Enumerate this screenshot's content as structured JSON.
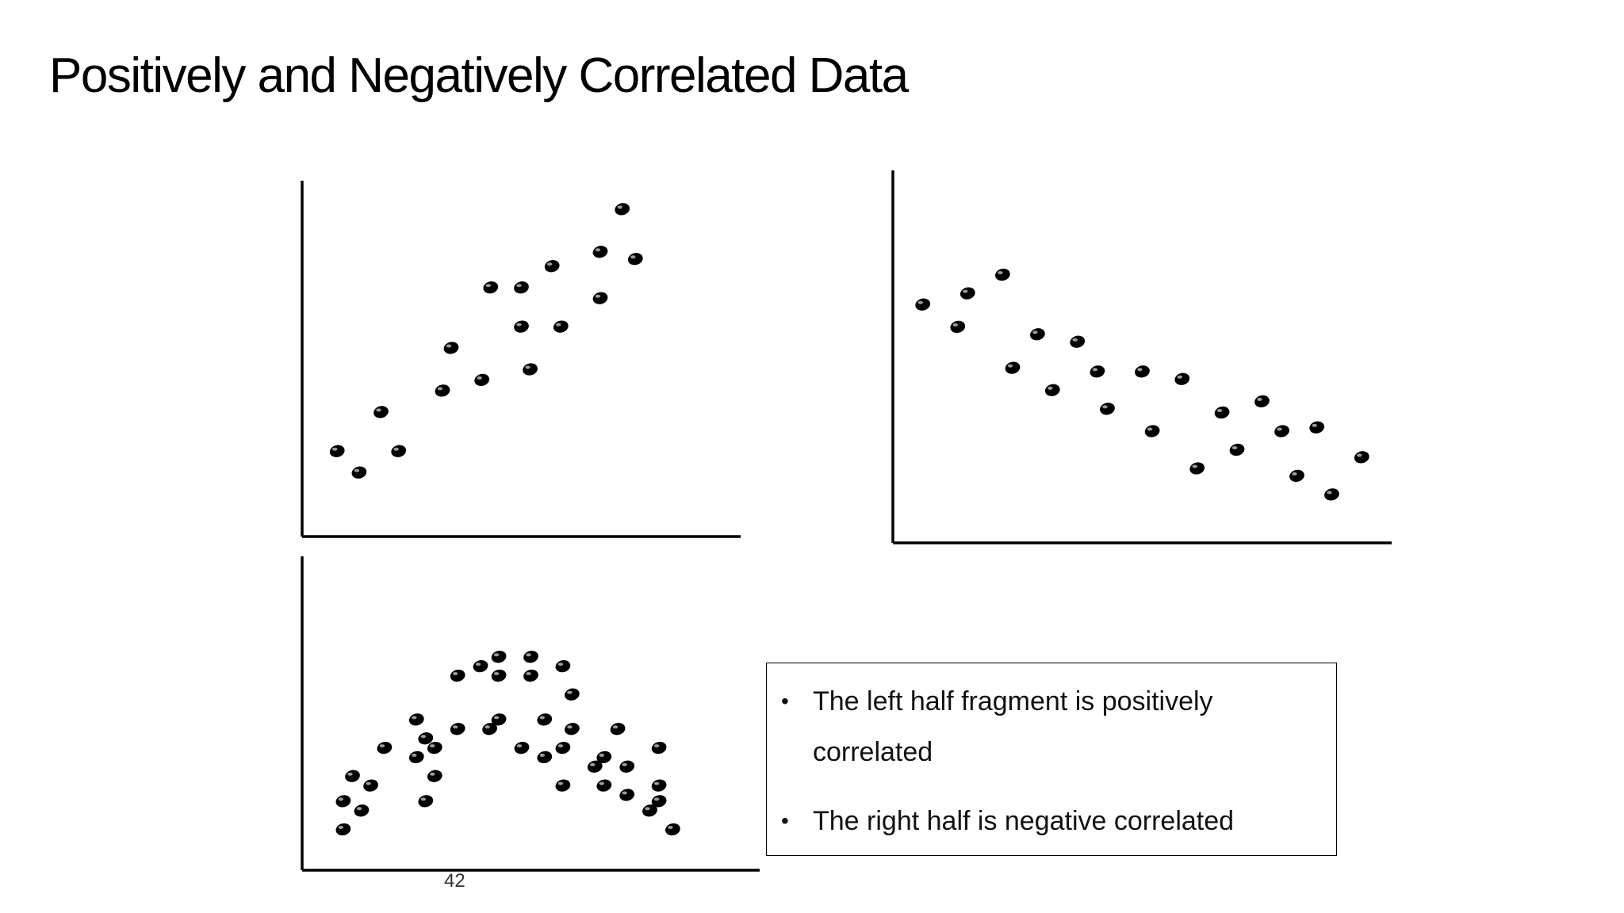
{
  "slide": {
    "title": "Positively and Negatively Correlated Data",
    "page_number": "42"
  },
  "callout": {
    "bullets": [
      "The left half fragment is positively correlated",
      "The right half is negative correlated"
    ]
  },
  "chart_data": [
    {
      "type": "scatter",
      "title": "",
      "xlabel": "",
      "ylabel": "",
      "xlim": [
        0,
        100
      ],
      "ylim": [
        0,
        100
      ],
      "grid": false,
      "axis_ticks": false,
      "color": "#000000",
      "points": [
        {
          "x": 8,
          "y": 24
        },
        {
          "x": 13,
          "y": 18
        },
        {
          "x": 18,
          "y": 35
        },
        {
          "x": 22,
          "y": 24
        },
        {
          "x": 32,
          "y": 41
        },
        {
          "x": 34,
          "y": 53
        },
        {
          "x": 41,
          "y": 44
        },
        {
          "x": 43,
          "y": 70
        },
        {
          "x": 50,
          "y": 59
        },
        {
          "x": 50,
          "y": 70
        },
        {
          "x": 52,
          "y": 47
        },
        {
          "x": 57,
          "y": 76
        },
        {
          "x": 59,
          "y": 59
        },
        {
          "x": 68,
          "y": 67
        },
        {
          "x": 68,
          "y": 80
        },
        {
          "x": 73,
          "y": 92
        },
        {
          "x": 76,
          "y": 78
        }
      ]
    },
    {
      "type": "scatter",
      "title": "",
      "xlabel": "",
      "ylabel": "",
      "xlim": [
        0,
        100
      ],
      "ylim": [
        0,
        100
      ],
      "grid": false,
      "axis_ticks": false,
      "color": "#000000",
      "points": [
        {
          "x": 6,
          "y": 64
        },
        {
          "x": 13,
          "y": 58
        },
        {
          "x": 15,
          "y": 67
        },
        {
          "x": 22,
          "y": 72
        },
        {
          "x": 24,
          "y": 47
        },
        {
          "x": 29,
          "y": 56
        },
        {
          "x": 32,
          "y": 41
        },
        {
          "x": 37,
          "y": 54
        },
        {
          "x": 41,
          "y": 46
        },
        {
          "x": 43,
          "y": 36
        },
        {
          "x": 50,
          "y": 46
        },
        {
          "x": 52,
          "y": 30
        },
        {
          "x": 58,
          "y": 44
        },
        {
          "x": 61,
          "y": 20
        },
        {
          "x": 66,
          "y": 35
        },
        {
          "x": 69,
          "y": 25
        },
        {
          "x": 74,
          "y": 38
        },
        {
          "x": 78,
          "y": 30
        },
        {
          "x": 81,
          "y": 18
        },
        {
          "x": 85,
          "y": 31
        },
        {
          "x": 88,
          "y": 13
        },
        {
          "x": 94,
          "y": 23
        }
      ]
    },
    {
      "type": "scatter",
      "title": "",
      "xlabel": "",
      "ylabel": "",
      "xlim": [
        0,
        100
      ],
      "ylim": [
        0,
        100
      ],
      "grid": false,
      "axis_ticks": false,
      "color": "#000000",
      "points": [
        {
          "x": 9,
          "y": 13
        },
        {
          "x": 9,
          "y": 22
        },
        {
          "x": 11,
          "y": 30
        },
        {
          "x": 13,
          "y": 19
        },
        {
          "x": 15,
          "y": 27
        },
        {
          "x": 18,
          "y": 39
        },
        {
          "x": 25,
          "y": 36
        },
        {
          "x": 25,
          "y": 48
        },
        {
          "x": 27,
          "y": 22
        },
        {
          "x": 27,
          "y": 42
        },
        {
          "x": 29,
          "y": 30
        },
        {
          "x": 29,
          "y": 39
        },
        {
          "x": 34,
          "y": 45
        },
        {
          "x": 34,
          "y": 62
        },
        {
          "x": 39,
          "y": 65
        },
        {
          "x": 41,
          "y": 45
        },
        {
          "x": 43,
          "y": 48
        },
        {
          "x": 43,
          "y": 62
        },
        {
          "x": 43,
          "y": 68
        },
        {
          "x": 48,
          "y": 39
        },
        {
          "x": 50,
          "y": 62
        },
        {
          "x": 50,
          "y": 68
        },
        {
          "x": 53,
          "y": 36
        },
        {
          "x": 53,
          "y": 48
        },
        {
          "x": 57,
          "y": 39
        },
        {
          "x": 57,
          "y": 27
        },
        {
          "x": 57,
          "y": 65
        },
        {
          "x": 59,
          "y": 45
        },
        {
          "x": 59,
          "y": 56
        },
        {
          "x": 64,
          "y": 33
        },
        {
          "x": 66,
          "y": 27
        },
        {
          "x": 66,
          "y": 36
        },
        {
          "x": 69,
          "y": 45
        },
        {
          "x": 71,
          "y": 24
        },
        {
          "x": 71,
          "y": 33
        },
        {
          "x": 76,
          "y": 19
        },
        {
          "x": 78,
          "y": 22
        },
        {
          "x": 78,
          "y": 27
        },
        {
          "x": 78,
          "y": 39
        },
        {
          "x": 81,
          "y": 13
        }
      ]
    }
  ]
}
